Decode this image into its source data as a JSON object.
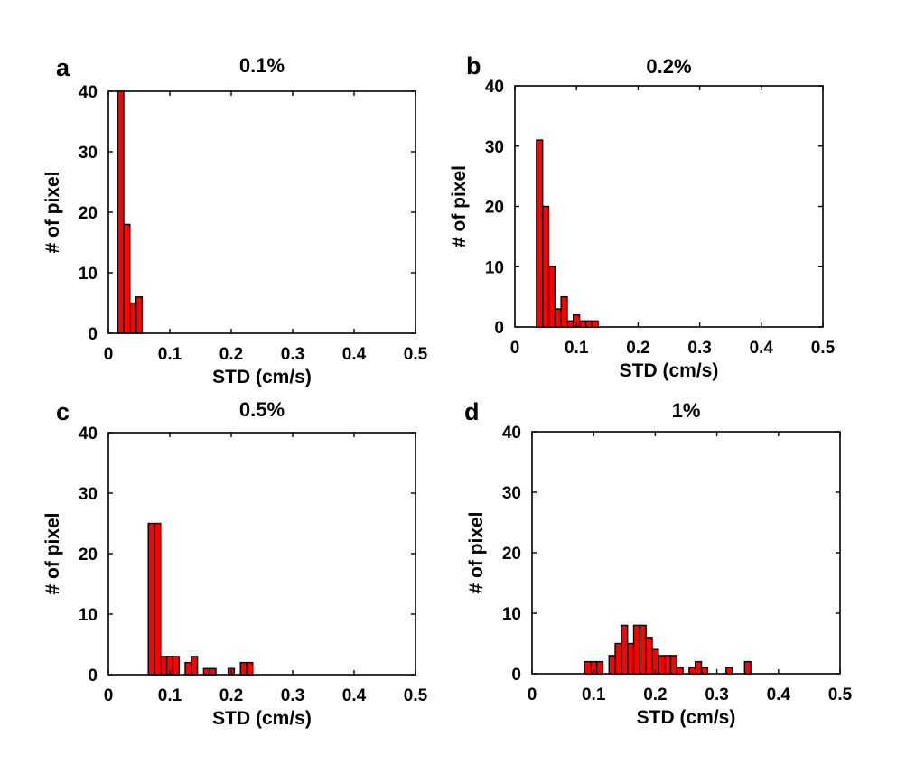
{
  "figure": {
    "bar_color": "#ff0000",
    "bar_edge": "#000000"
  },
  "chart_data": [
    {
      "panel": "a",
      "type": "bar",
      "title": "0.1%",
      "xlabel": "STD (cm/s)",
      "ylabel": "# of pixel",
      "xlim": [
        0,
        0.5
      ],
      "ylim": [
        0,
        40
      ],
      "xticks": [
        0,
        0.1,
        0.2,
        0.3,
        0.4,
        0.5
      ],
      "yticks": [
        0,
        10,
        20,
        30,
        40
      ],
      "bin_width": 0.01,
      "bins": [
        {
          "x": 0.02,
          "y": 40
        },
        {
          "x": 0.03,
          "y": 18
        },
        {
          "x": 0.04,
          "y": 5
        },
        {
          "x": 0.05,
          "y": 6
        }
      ]
    },
    {
      "panel": "b",
      "type": "bar",
      "title": "0.2%",
      "xlabel": "STD (cm/s)",
      "ylabel": "# of pixel",
      "xlim": [
        0,
        0.5
      ],
      "ylim": [
        0,
        40
      ],
      "xticks": [
        0,
        0.1,
        0.2,
        0.3,
        0.4,
        0.5
      ],
      "yticks": [
        0,
        10,
        20,
        30,
        40
      ],
      "bin_width": 0.01,
      "bins": [
        {
          "x": 0.04,
          "y": 31
        },
        {
          "x": 0.05,
          "y": 20
        },
        {
          "x": 0.06,
          "y": 10
        },
        {
          "x": 0.07,
          "y": 3
        },
        {
          "x": 0.08,
          "y": 5
        },
        {
          "x": 0.09,
          "y": 1
        },
        {
          "x": 0.1,
          "y": 2
        },
        {
          "x": 0.11,
          "y": 1
        },
        {
          "x": 0.12,
          "y": 1
        },
        {
          "x": 0.13,
          "y": 1
        }
      ]
    },
    {
      "panel": "c",
      "type": "bar",
      "title": "0.5%",
      "xlabel": "STD (cm/s)",
      "ylabel": "# of pixel",
      "xlim": [
        0,
        0.5
      ],
      "ylim": [
        0,
        40
      ],
      "xticks": [
        0,
        0.1,
        0.2,
        0.3,
        0.4,
        0.5
      ],
      "yticks": [
        0,
        10,
        20,
        30,
        40
      ],
      "bin_width": 0.01,
      "bins": [
        {
          "x": 0.07,
          "y": 25
        },
        {
          "x": 0.08,
          "y": 25
        },
        {
          "x": 0.09,
          "y": 3
        },
        {
          "x": 0.1,
          "y": 3
        },
        {
          "x": 0.11,
          "y": 3
        },
        {
          "x": 0.13,
          "y": 2
        },
        {
          "x": 0.14,
          "y": 3
        },
        {
          "x": 0.16,
          "y": 1
        },
        {
          "x": 0.17,
          "y": 1
        },
        {
          "x": 0.2,
          "y": 1
        },
        {
          "x": 0.22,
          "y": 2
        },
        {
          "x": 0.23,
          "y": 2
        }
      ]
    },
    {
      "panel": "d",
      "type": "bar",
      "title": "1%",
      "xlabel": "STD (cm/s)",
      "ylabel": "# of pixel",
      "xlim": [
        0,
        0.5
      ],
      "ylim": [
        0,
        40
      ],
      "xticks": [
        0,
        0.1,
        0.2,
        0.3,
        0.4,
        0.5
      ],
      "yticks": [
        0,
        10,
        20,
        30,
        40
      ],
      "bin_width": 0.01,
      "bins": [
        {
          "x": 0.09,
          "y": 2
        },
        {
          "x": 0.1,
          "y": 2
        },
        {
          "x": 0.11,
          "y": 2
        },
        {
          "x": 0.13,
          "y": 3
        },
        {
          "x": 0.14,
          "y": 5
        },
        {
          "x": 0.15,
          "y": 8
        },
        {
          "x": 0.16,
          "y": 5
        },
        {
          "x": 0.17,
          "y": 8
        },
        {
          "x": 0.18,
          "y": 8
        },
        {
          "x": 0.19,
          "y": 6
        },
        {
          "x": 0.2,
          "y": 4
        },
        {
          "x": 0.21,
          "y": 3
        },
        {
          "x": 0.22,
          "y": 3
        },
        {
          "x": 0.23,
          "y": 3
        },
        {
          "x": 0.24,
          "y": 1
        },
        {
          "x": 0.26,
          "y": 1
        },
        {
          "x": 0.27,
          "y": 2
        },
        {
          "x": 0.28,
          "y": 1
        },
        {
          "x": 0.32,
          "y": 1
        },
        {
          "x": 0.35,
          "y": 2
        }
      ]
    }
  ]
}
